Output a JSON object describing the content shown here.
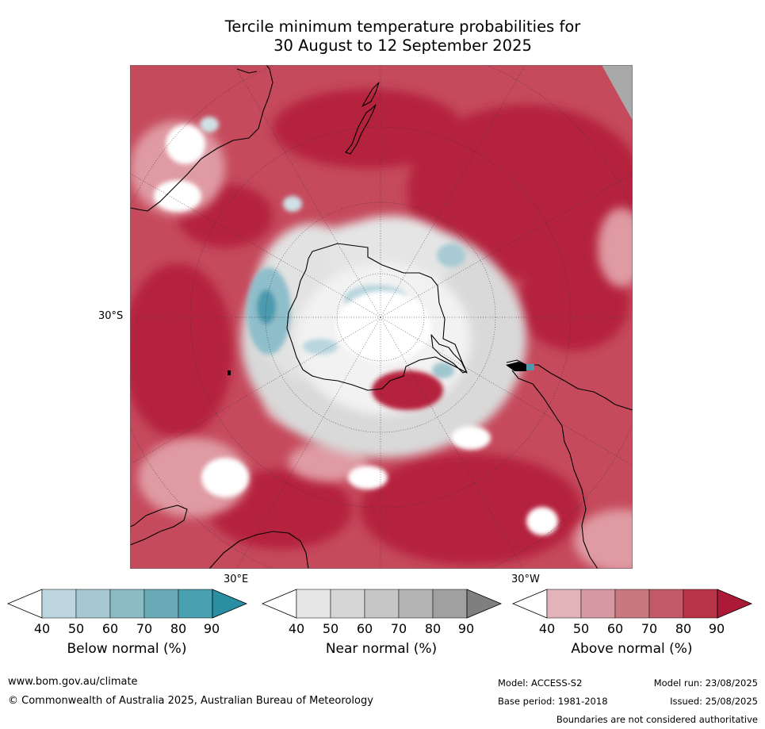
{
  "title_line1": "Tercile minimum temperature probabilities for",
  "title_line2": "30 August to 12 September 2025",
  "map": {
    "projection": "south-polar-stereographic",
    "lat_label": "30°S",
    "lon_labels": [
      "30°E",
      "30°W"
    ],
    "colors": {
      "land_outline": "#000000",
      "strong_above": "#b5213e",
      "above": "#c9505f",
      "weak_above": "#df9aa3",
      "near": "#d6d6d6",
      "below": "#7fb4c2",
      "missing": "#a9a9a9"
    }
  },
  "legends": [
    {
      "name": "below",
      "title": "Below normal (%)",
      "ticks": [
        "40",
        "50",
        "60",
        "70",
        "80",
        "90"
      ],
      "colors": [
        "#ffffff",
        "#bdd5dd",
        "#a6c8d0",
        "#8cbbc4",
        "#69aab7",
        "#48a0b0",
        "#2a8fa2"
      ]
    },
    {
      "name": "near",
      "title": "Near normal (%)",
      "ticks": [
        "40",
        "50",
        "60",
        "70",
        "80",
        "90"
      ],
      "colors": [
        "#ffffff",
        "#e6e6e6",
        "#d6d6d6",
        "#c6c6c6",
        "#b4b4b4",
        "#a0a0a0",
        "#7f7f7f"
      ]
    },
    {
      "name": "above",
      "title": "Above normal (%)",
      "ticks": [
        "40",
        "50",
        "60",
        "70",
        "80",
        "90"
      ],
      "colors": [
        "#ffffff",
        "#e1b4b9",
        "#d59aa1",
        "#c97880",
        "#c25b67",
        "#ba3448",
        "#ad1a38"
      ]
    }
  ],
  "footer": {
    "url": "www.bom.gov.au/climate",
    "copyright": "© Commonwealth of Australia 2025, Australian Bureau of Meteorology",
    "model": "Model: ACCESS-S2",
    "model_run": "Model run: 23/08/2025",
    "base_period": "Base period: 1981-2018",
    "issued": "Issued: 25/08/2025",
    "disclaimer": "Boundaries are not considered authoritative"
  }
}
